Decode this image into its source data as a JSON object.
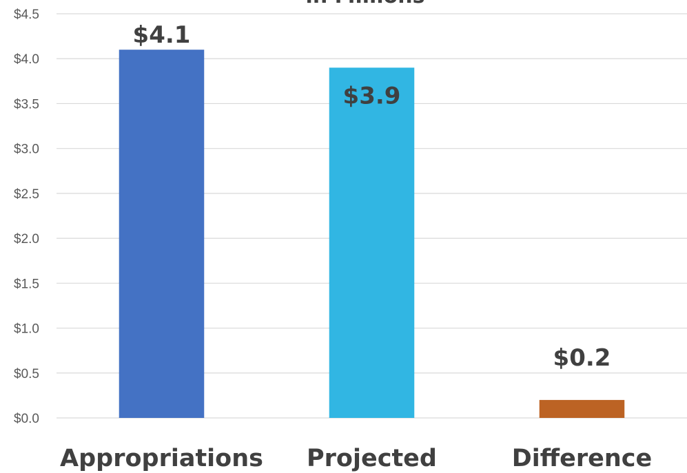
{
  "chart_data": {
    "type": "bar",
    "title": "in Millions",
    "xlabel": "",
    "ylabel": "",
    "categories": [
      "Appropriations",
      "Projected",
      "Difference"
    ],
    "values": [
      4.1,
      3.9,
      0.2
    ],
    "data_labels": [
      "$4.1",
      "$3.9",
      "$0.2"
    ],
    "bar_colors": [
      "#4472c4",
      "#31b6e3",
      "#bc6324"
    ],
    "ylim": [
      0,
      4.5
    ],
    "yticks": [
      0,
      0.5,
      1.0,
      1.5,
      2.0,
      2.5,
      3.0,
      3.5,
      4.0,
      4.5
    ],
    "ytick_labels": [
      "$0.0",
      "$0.5",
      "$1.0",
      "$1.5",
      "$2.0",
      "$2.5",
      "$3.0",
      "$3.5",
      "$4.0",
      "$4.5"
    ],
    "grid": true,
    "legend": "none"
  }
}
